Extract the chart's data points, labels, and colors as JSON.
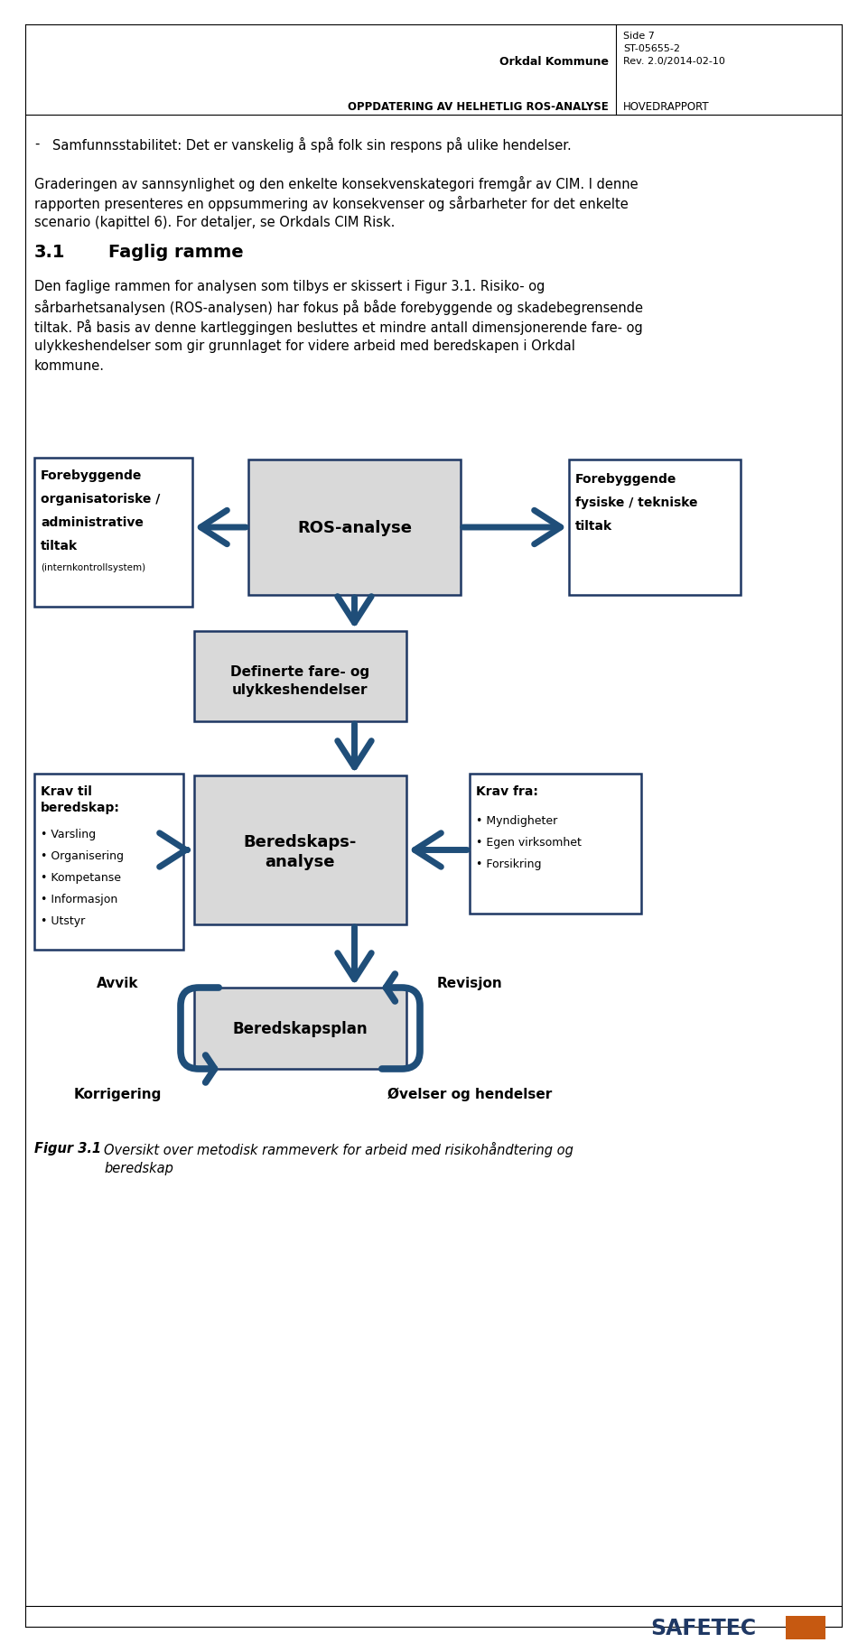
{
  "page_title_left": "OPPDATERING AV HELHETLIG ROS-ANALYSE",
  "page_title_right": "HOVEDRAPPORT",
  "header_company": "Orkdal Kommune",
  "header_side": "Side 7",
  "header_st": "ST-05655-2",
  "header_rev": "Rev. 2.0/2014-02-10",
  "bullet_text": "Samfunnsstabilitet: Det er vanskelig å spå folk sin respons på ulike hendelser.",
  "para1_line1": "Graderingen av sannsynlighet og den enkelte konsekvenskategori fremgår av CIM. I denne",
  "para1_line2": "rapporten presenteres en oppsummering av konsekvenser og sårbarheter for det enkelte",
  "para1_line3": "scenario (kapittel 6). For detaljer, se Orkdals CIM Risk.",
  "section_num": "3.1",
  "section_title": "Faglig ramme",
  "para2_line1": "Den faglige rammen for analysen som tilbys er skissert i Figur 3.1. Risiko- og",
  "para2_line2": "sårbarhetsanalysen (ROS-analysen) har fokus på både forebyggende og skadebegrensende",
  "para2_line3": "tiltak. På basis av denne kartleggingen besluttes et mindre antall dimensjonerende fare- og",
  "para2_line4": "ulykkeshendelser som gir grunnlaget for videre arbeid med beredskapen i Orkdal",
  "para2_line5": "kommune.",
  "box_ros_label": "ROS-analyse",
  "box_fore_org_line1": "Forebyggende",
  "box_fore_org_line2": "organisatoriske /",
  "box_fore_org_line3": "administrative",
  "box_fore_org_line4": "tiltak",
  "box_fore_org_line5": "(internkontrollsystem)",
  "box_fore_fys_line1": "Forebyggende",
  "box_fore_fys_line2": "fysiske / tekniske",
  "box_fore_fys_line3": "tiltak",
  "box_def_fare_line1": "Definerte fare- og",
  "box_def_fare_line2": "ulykkeshendelser",
  "box_krav_til_line1": "Krav til",
  "box_krav_til_line2": "beredskap:",
  "box_krav_til_bullets": [
    "• Varsling",
    "• Organisering",
    "• Kompetanse",
    "• Informasjon",
    "• Utstyr"
  ],
  "box_beredskaps_line1": "Beredskaps-",
  "box_beredskaps_line2": "analyse",
  "box_krav_fra_title": "Krav fra:",
  "box_krav_fra_bullets": [
    "• Myndigheter",
    "• Egen virksomhet",
    "• Forsikring"
  ],
  "box_beredskapsplan_label": "Beredskapsplan",
  "label_avvik": "Avvik",
  "label_revisjon": "Revisjon",
  "label_korrigering": "Korrigering",
  "label_ovelser": "Øvelser og hendelser",
  "fig_num": "Figur 3.1",
  "fig_text_line1": "Oversikt over metodisk rammeverk for arbeid med risikohåndtering og",
  "fig_text_line2": "beredskap",
  "box_fill_gray": "#d9d9d9",
  "box_fill_white": "#ffffff",
  "box_edge_dark": "#1F3864",
  "arrow_fill": "#1F4E79",
  "text_color": "#000000",
  "bg_color": "#ffffff",
  "safetec_color": "#1F3864",
  "header_line_color": "#000000"
}
